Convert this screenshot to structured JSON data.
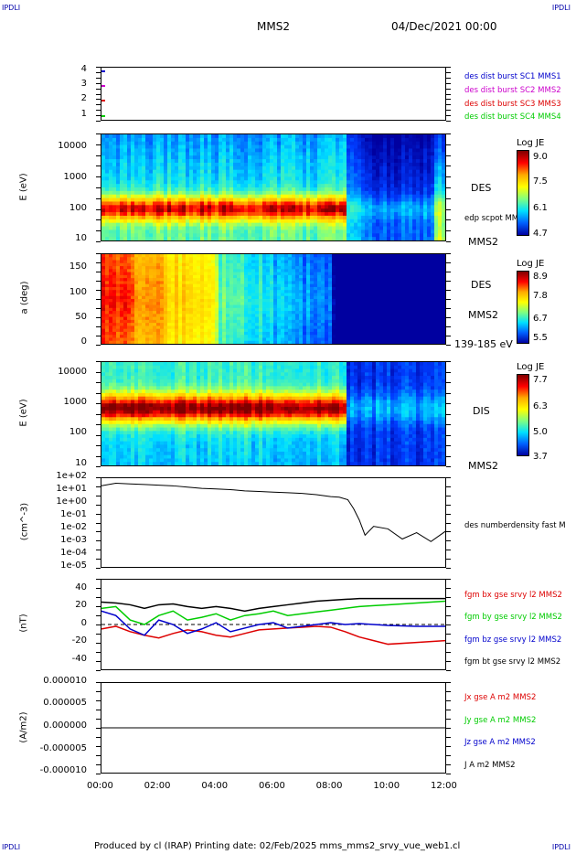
{
  "header": {
    "corner_left_top": "IPDLI",
    "corner_right_top": "IPDLI",
    "corner_left_bottom": "IPDLI",
    "corner_right_bottom": "IPDLI",
    "spacecraft": "MMS2",
    "date": "04/Dec/2021 00:00"
  },
  "footer": {
    "text": "Produced by cl (IRAP)   Printing date: 02/Feb/2025   mms_mms2_srvy_vue_web1.cl"
  },
  "colors": {
    "blue": "#0000cc",
    "magenta": "#cc00cc",
    "red": "#dd0000",
    "green": "#00cc00",
    "black": "#000000"
  },
  "chart_data": [
    {
      "type": "line",
      "id": "availability",
      "ylim": [
        1,
        4
      ],
      "yticks": [
        "4",
        "3",
        "2",
        "1"
      ],
      "legend": [
        {
          "text": "des dist burst SC1 MMS1",
          "color": "#0000cc"
        },
        {
          "text": "des dist burst SC2 MMS2",
          "color": "#cc00cc"
        },
        {
          "text": "des dist burst SC3 MMS3",
          "color": "#dd0000"
        },
        {
          "text": "des dist burst SC4 MMS4",
          "color": "#00cc00"
        }
      ]
    },
    {
      "type": "heatmap",
      "id": "des-energy",
      "ylabel": "E (eV)",
      "yscale": "log",
      "ylim": [
        10,
        30000
      ],
      "yticks": [
        "10000",
        "1000",
        "100",
        "10"
      ],
      "label_right": "DES",
      "label_right_small": "edp scpot MMS2",
      "label_bottom": "MMS2",
      "colorbar": {
        "title": "Log JE",
        "ticks": [
          "9.0",
          "7.5",
          "6.1",
          "4.7"
        ],
        "range": [
          4.7,
          9.0
        ]
      }
    },
    {
      "type": "heatmap",
      "id": "des-pitch",
      "ylabel": "a (deg)",
      "ylim": [
        0,
        180
      ],
      "yticks": [
        "150",
        "100",
        "50",
        "0"
      ],
      "label_right": "DES",
      "label_right2": "MMS2",
      "label_bottom": "139-185 eV",
      "colorbar": {
        "title": "Log JE",
        "ticks": [
          "8.9",
          "7.8",
          "6.7",
          "5.5"
        ],
        "range": [
          5.5,
          8.9
        ]
      }
    },
    {
      "type": "heatmap",
      "id": "dis-energy",
      "ylabel": "E (eV)",
      "yscale": "log",
      "ylim": [
        10,
        20000
      ],
      "yticks": [
        "10000",
        "1000",
        "100",
        "10"
      ],
      "label_right": "DIS",
      "label_bottom": "MMS2",
      "colorbar": {
        "title": "Log JE",
        "ticks": [
          "7.7",
          "6.3",
          "5.0",
          "3.7"
        ],
        "range": [
          3.7,
          7.7
        ]
      }
    },
    {
      "type": "line",
      "id": "density",
      "ylabel": "(cm^-3)",
      "yscale": "log",
      "ylim": [
        -5,
        2
      ],
      "yticks": [
        "1e+02",
        "1e+01",
        "1e+00",
        "1e-01",
        "1e-02",
        "1e-03",
        "1e-04",
        "1e-05"
      ],
      "series": [
        {
          "name": "des numberdensity fast M",
          "color": "#000000",
          "x": [
            0,
            0.5,
            1,
            1.5,
            2,
            2.5,
            3,
            3.5,
            4,
            4.5,
            5,
            5.5,
            6,
            6.5,
            7,
            7.5,
            8,
            8.3,
            8.6,
            8.8,
            9.0,
            9.2,
            9.5,
            10.0,
            10.5,
            11.0,
            11.5,
            12.0
          ],
          "y": [
            1.4,
            1.6,
            1.55,
            1.5,
            1.45,
            1.4,
            1.3,
            1.2,
            1.15,
            1.1,
            1.0,
            0.95,
            0.9,
            0.85,
            0.8,
            0.7,
            0.55,
            0.5,
            0.3,
            -0.4,
            -1.3,
            -2.5,
            -1.8,
            -2.0,
            -2.8,
            -2.3,
            -3.0,
            -2.2
          ]
        }
      ]
    },
    {
      "type": "line",
      "id": "magnetic-field",
      "ylabel": "(nT)",
      "ylim": [
        -50,
        50
      ],
      "yticks": [
        "40",
        "20",
        "0",
        "-20",
        "-40"
      ],
      "series": [
        {
          "name": "fgm bx gse srvy l2 MMS2",
          "color": "#dd0000",
          "x": [
            0,
            0.5,
            1,
            1.5,
            2,
            2.5,
            3,
            3.5,
            4,
            4.5,
            5,
            5.5,
            6,
            6.5,
            7,
            7.5,
            8,
            8.5,
            9,
            9.5,
            10,
            11,
            12
          ],
          "y": [
            -5,
            -2,
            -8,
            -12,
            -15,
            -10,
            -6,
            -8,
            -12,
            -14,
            -10,
            -6,
            -5,
            -4,
            -3,
            -2,
            -3,
            -8,
            -14,
            -18,
            -22,
            -20,
            -18
          ]
        },
        {
          "name": "fgm by gse srvy l2 MMS2",
          "color": "#00cc00",
          "x": [
            0,
            0.5,
            1,
            1.5,
            2,
            2.5,
            3,
            3.5,
            4,
            4.5,
            5,
            5.5,
            6,
            6.5,
            7,
            7.5,
            8,
            8.5,
            9,
            9.5,
            10,
            11,
            12
          ],
          "y": [
            18,
            20,
            5,
            0,
            10,
            15,
            5,
            8,
            12,
            5,
            10,
            12,
            15,
            10,
            12,
            14,
            16,
            18,
            20,
            21,
            22,
            24,
            26
          ]
        },
        {
          "name": "fgm bz gse srvy l2 MMS2",
          "color": "#0000cc",
          "x": [
            0,
            0.5,
            1,
            1.5,
            2,
            2.5,
            3,
            3.5,
            4,
            4.5,
            5,
            5.5,
            6,
            6.5,
            7,
            7.5,
            8,
            8.5,
            9,
            9.5,
            10,
            11,
            12
          ],
          "y": [
            15,
            10,
            -5,
            -12,
            5,
            0,
            -10,
            -5,
            2,
            -8,
            -4,
            0,
            2,
            -4,
            -2,
            0,
            2,
            0,
            1,
            0,
            -1,
            -2,
            -2
          ]
        },
        {
          "name": "fgm bt gse srvy l2 MMS2",
          "color": "#000000",
          "x": [
            0,
            0.5,
            1,
            1.5,
            2,
            2.5,
            3,
            3.5,
            4,
            4.5,
            5,
            5.5,
            6,
            6.5,
            7,
            7.5,
            8,
            8.5,
            9,
            9.5,
            10,
            11,
            12
          ],
          "y": [
            25,
            24,
            22,
            18,
            22,
            23,
            20,
            18,
            20,
            18,
            15,
            18,
            20,
            22,
            24,
            26,
            27,
            28,
            29,
            29,
            29,
            29,
            29
          ]
        }
      ]
    },
    {
      "type": "line",
      "id": "current-density",
      "ylabel": "(A/m2)",
      "ylim": [
        -1e-05,
        1e-05
      ],
      "yticks": [
        "0.000010",
        "0.000005",
        "0.000000",
        "-0.000005",
        "-0.000010"
      ],
      "xticks": [
        "00:00",
        "02:00",
        "04:00",
        "06:00",
        "08:00",
        "10:00",
        "12:00"
      ],
      "series": [
        {
          "name": "Jx gse A m2 MMS2",
          "color": "#dd0000",
          "x": [
            0,
            12
          ],
          "y": [
            0,
            0
          ]
        },
        {
          "name": "Jy gse A m2 MMS2",
          "color": "#00cc00",
          "x": [
            0,
            12
          ],
          "y": [
            0,
            0
          ]
        },
        {
          "name": "Jz gse A m2 MMS2",
          "color": "#0000cc",
          "x": [
            0,
            12
          ],
          "y": [
            0,
            0
          ]
        },
        {
          "name": "J A m2 MMS2",
          "color": "#000000",
          "x": [
            0,
            12
          ],
          "y": [
            0,
            0
          ]
        }
      ]
    }
  ]
}
